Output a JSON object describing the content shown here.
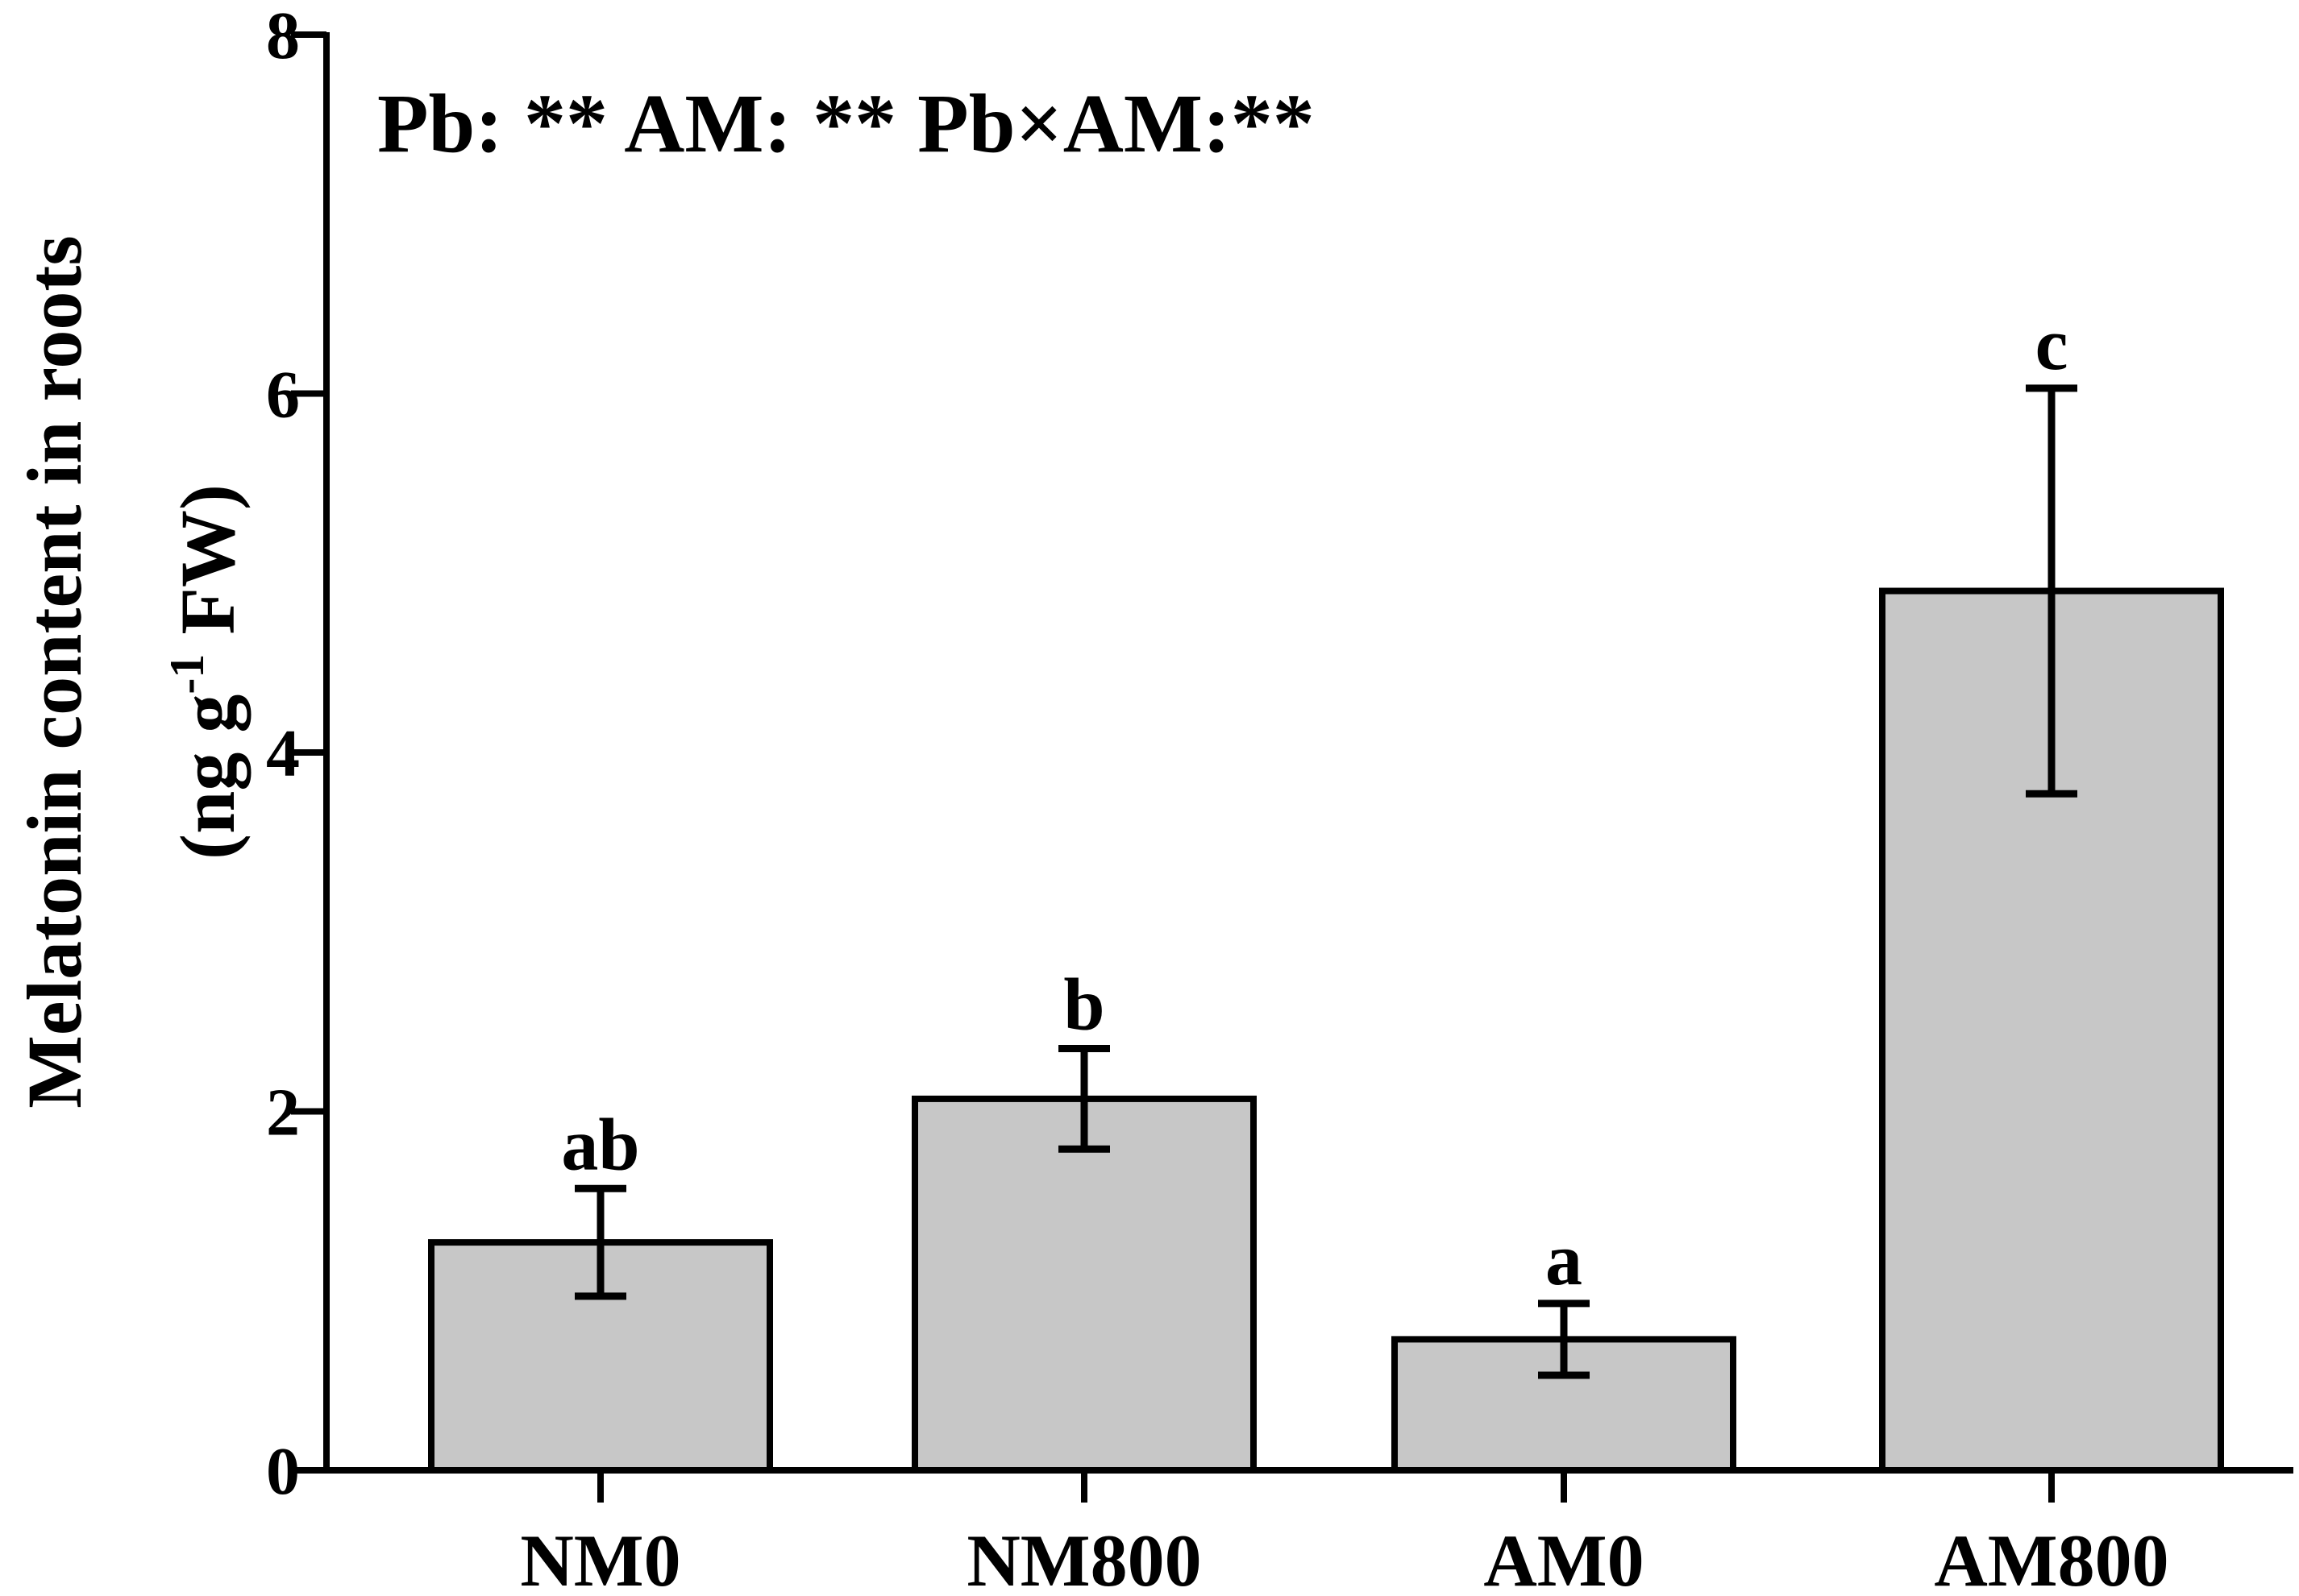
{
  "chart_data": {
    "type": "bar",
    "categories": [
      "NM0",
      "NM800",
      "AM0",
      "AM800"
    ],
    "values": [
      1.27,
      2.07,
      0.73,
      4.9
    ],
    "errors": [
      0.3,
      0.28,
      0.2,
      1.13
    ],
    "significance_letters": [
      "ab",
      "b",
      "a",
      "c"
    ],
    "annotation": "Pb: ** AM: ** Pb×AM:**",
    "ylabel_line1": "Melatonin content in roots",
    "ylabel_line2_prefix": "(ng g",
    "ylabel_line2_sup": "-1",
    "ylabel_line2_suffix": " FW)",
    "ylim": [
      0,
      8
    ],
    "yticks": [
      "0",
      "2",
      "4",
      "6",
      "8"
    ],
    "colors": {
      "bar_fill": "#c7c7c7",
      "stroke": "#000000"
    },
    "grid": false,
    "legend": "none"
  }
}
